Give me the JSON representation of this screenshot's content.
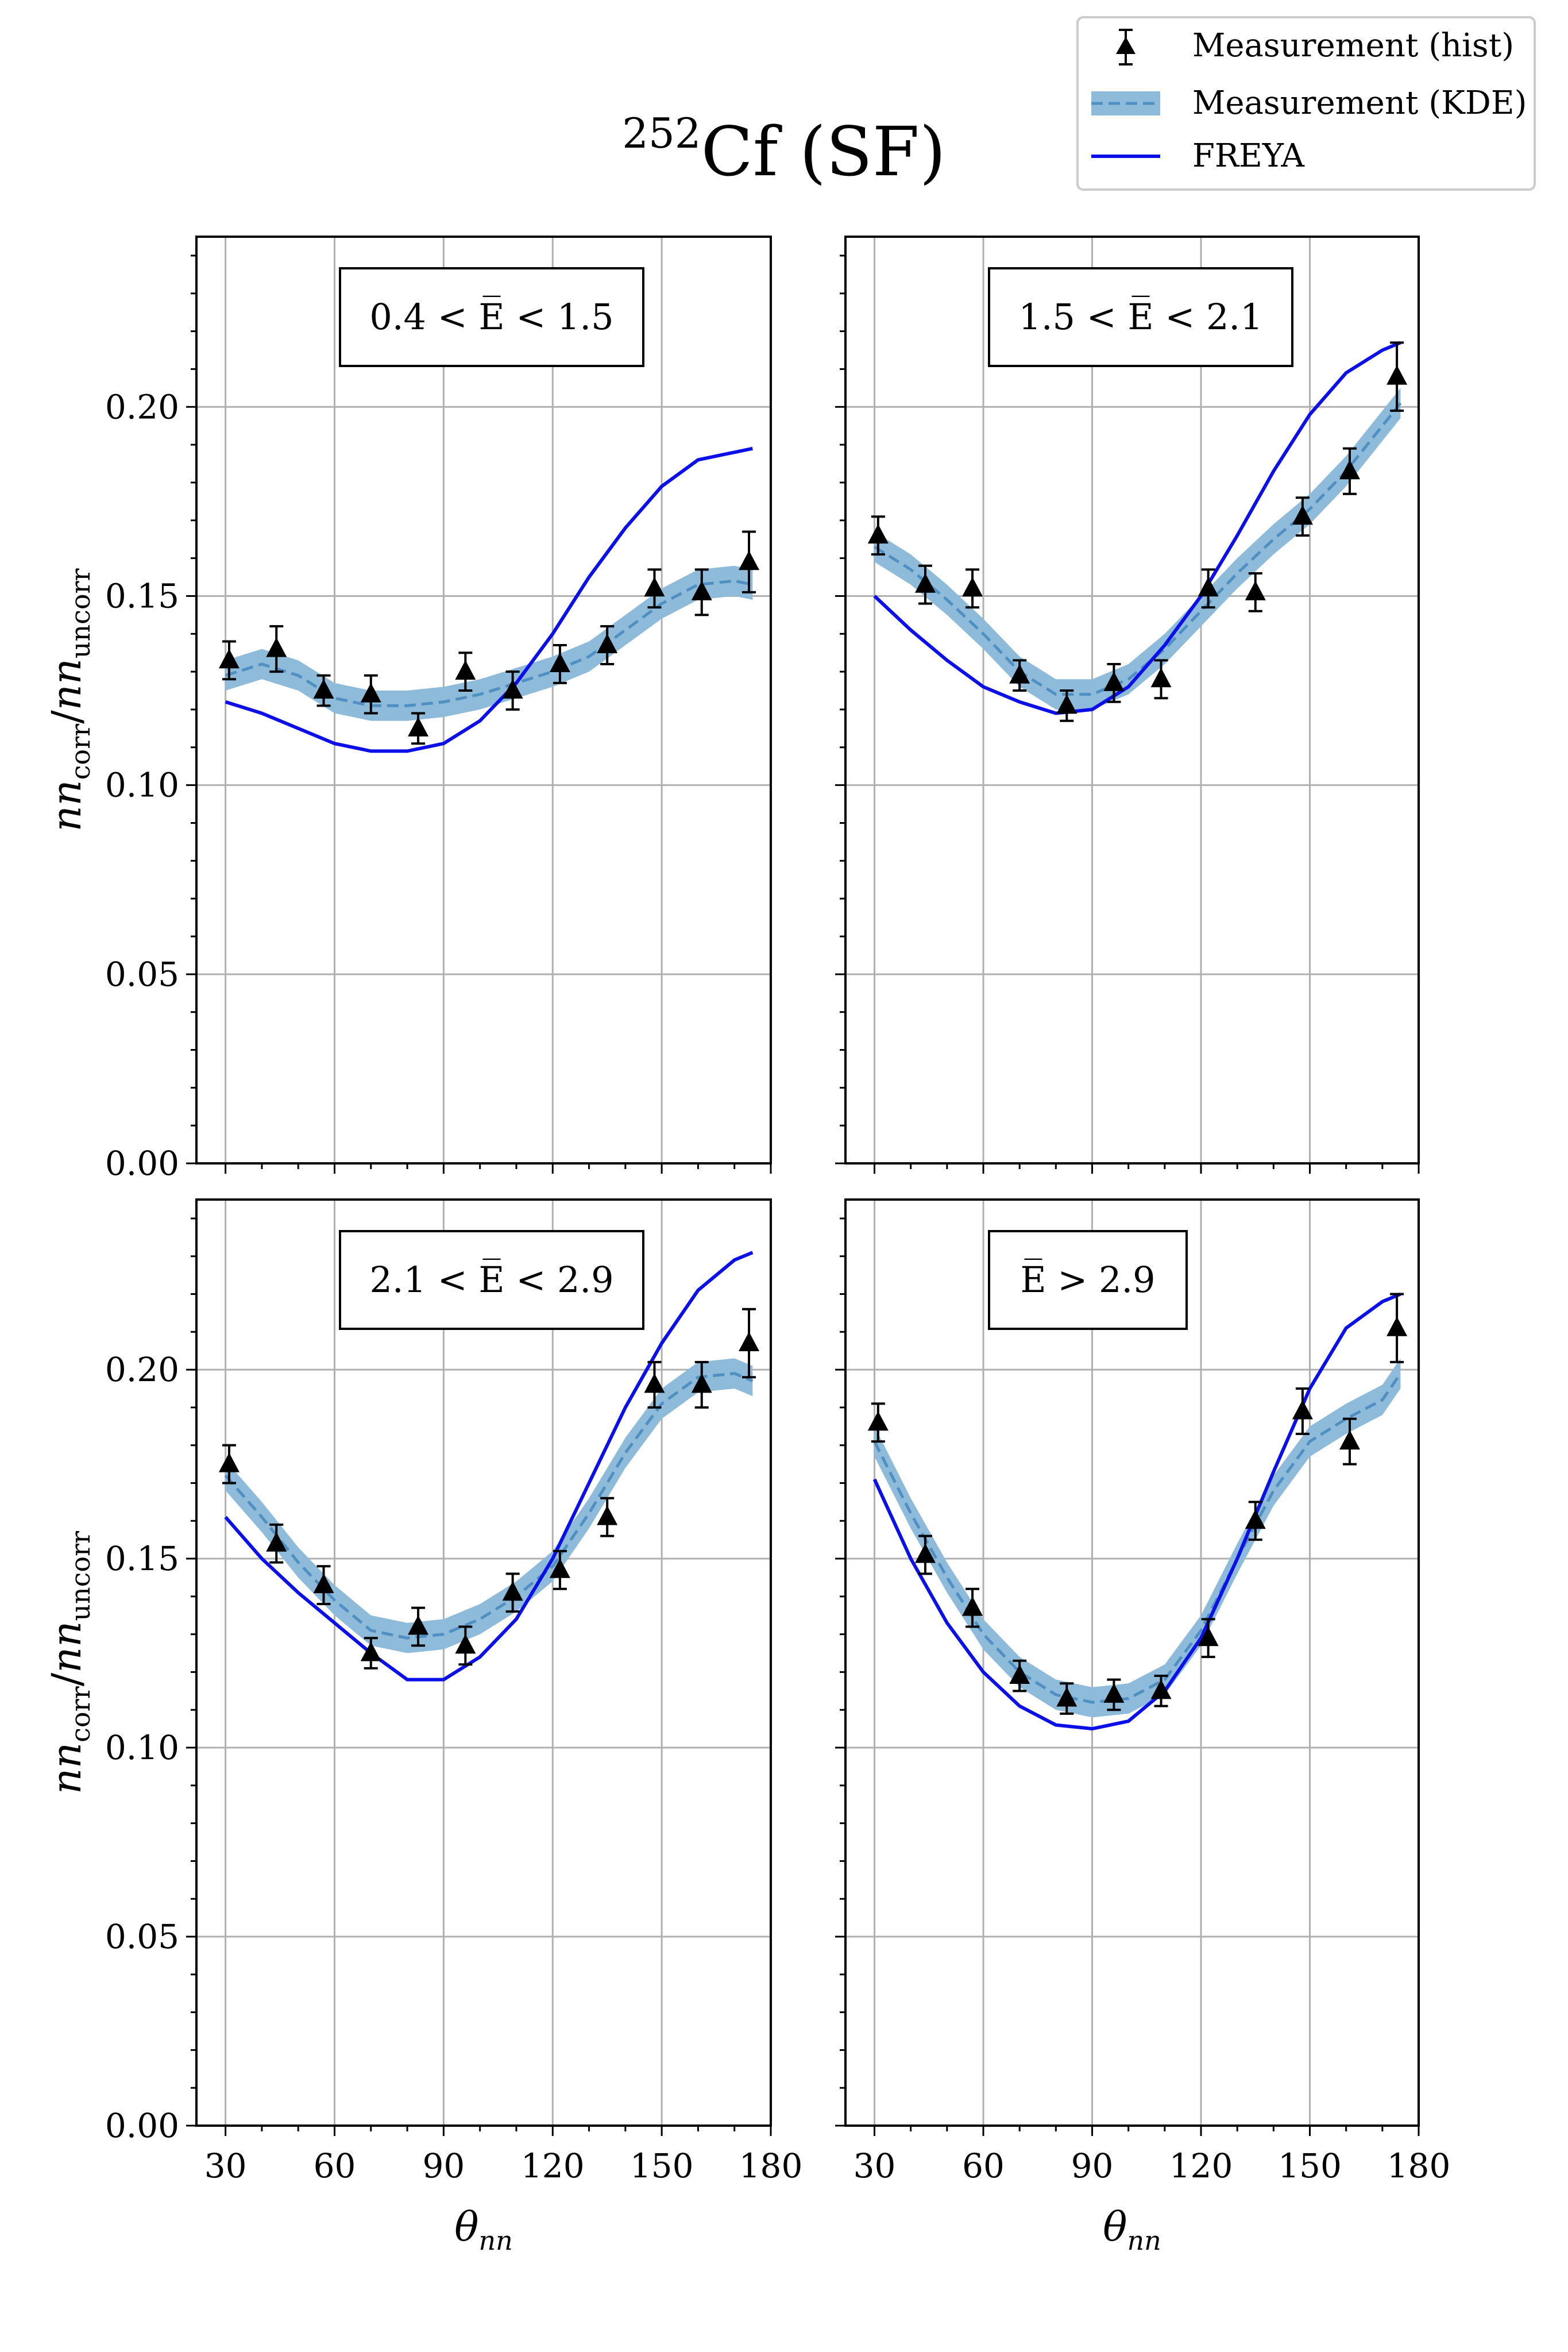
{
  "figure": {
    "title_sup": "252",
    "title_main": "Cf (SF)",
    "xlabel_main": "θ",
    "xlabel_sub": "nn",
    "ylabel_a": "nn",
    "ylabel_a_sub": "corr",
    "ylabel_sep": "/",
    "ylabel_b": "nn",
    "ylabel_b_sub": "uncorr"
  },
  "legend": {
    "position": "top-right",
    "entries": [
      {
        "label": "Measurement (hist)",
        "kind": "hist"
      },
      {
        "label": "Measurement (KDE)",
        "kind": "kde"
      },
      {
        "label": "FREYA",
        "kind": "freya"
      }
    ]
  },
  "colors": {
    "hist": "#000000",
    "kde_band": "#8fbbdb",
    "kde_line": "#4f8fc1",
    "freya": "#0b10e8",
    "grid": "#b0b0b0"
  },
  "chart_data": [
    {
      "type": "line",
      "panel_label": "0.4 < E̅ < 1.5",
      "xlim": [
        22,
        180
      ],
      "ylim": [
        0,
        0.245
      ],
      "xticks": [
        30,
        60,
        90,
        120,
        150,
        180
      ],
      "yticks": [
        0.0,
        0.05,
        0.1,
        0.15,
        0.2
      ],
      "grid": true,
      "hist": {
        "x": [
          31,
          44,
          57,
          70,
          83,
          96,
          109,
          122,
          135,
          148,
          161,
          174
        ],
        "y": [
          0.133,
          0.136,
          0.125,
          0.124,
          0.115,
          0.13,
          0.125,
          0.132,
          0.137,
          0.152,
          0.151,
          0.159
        ],
        "err": [
          0.005,
          0.006,
          0.004,
          0.005,
          0.004,
          0.005,
          0.005,
          0.005,
          0.005,
          0.005,
          0.006,
          0.008
        ]
      },
      "kde": {
        "x": [
          30,
          40,
          50,
          60,
          70,
          80,
          90,
          100,
          110,
          120,
          130,
          140,
          150,
          160,
          170,
          175
        ],
        "y": [
          0.129,
          0.132,
          0.129,
          0.123,
          0.121,
          0.121,
          0.122,
          0.124,
          0.127,
          0.13,
          0.134,
          0.141,
          0.148,
          0.153,
          0.154,
          0.153
        ],
        "band": 0.004
      },
      "freya": {
        "x": [
          30,
          40,
          50,
          60,
          70,
          80,
          90,
          100,
          110,
          120,
          130,
          140,
          150,
          160,
          170,
          175
        ],
        "y": [
          0.122,
          0.119,
          0.115,
          0.111,
          0.109,
          0.109,
          0.111,
          0.117,
          0.127,
          0.14,
          0.155,
          0.168,
          0.179,
          0.186,
          0.188,
          0.189
        ]
      }
    },
    {
      "type": "line",
      "panel_label": "1.5 < E̅ < 2.1",
      "xlim": [
        22,
        180
      ],
      "ylim": [
        0,
        0.245
      ],
      "xticks": [
        30,
        60,
        90,
        120,
        150,
        180
      ],
      "yticks": [
        0.0,
        0.05,
        0.1,
        0.15,
        0.2
      ],
      "grid": true,
      "hist": {
        "x": [
          31,
          44,
          57,
          70,
          83,
          96,
          109,
          122,
          135,
          148,
          161,
          174
        ],
        "y": [
          0.166,
          0.153,
          0.152,
          0.129,
          0.121,
          0.127,
          0.128,
          0.152,
          0.151,
          0.171,
          0.183,
          0.208
        ],
        "err": [
          0.005,
          0.005,
          0.005,
          0.004,
          0.004,
          0.005,
          0.005,
          0.005,
          0.005,
          0.005,
          0.006,
          0.009
        ]
      },
      "kde": {
        "x": [
          30,
          40,
          50,
          60,
          70,
          80,
          90,
          100,
          110,
          120,
          130,
          140,
          150,
          160,
          170,
          175
        ],
        "y": [
          0.163,
          0.157,
          0.149,
          0.14,
          0.13,
          0.124,
          0.124,
          0.128,
          0.136,
          0.146,
          0.156,
          0.165,
          0.173,
          0.183,
          0.195,
          0.201
        ],
        "band": 0.004
      },
      "freya": {
        "x": [
          30,
          40,
          50,
          60,
          70,
          80,
          90,
          100,
          110,
          120,
          130,
          140,
          150,
          160,
          170,
          175
        ],
        "y": [
          0.15,
          0.141,
          0.133,
          0.126,
          0.122,
          0.119,
          0.12,
          0.126,
          0.137,
          0.15,
          0.166,
          0.183,
          0.198,
          0.209,
          0.215,
          0.217
        ]
      }
    },
    {
      "type": "line",
      "panel_label": "2.1 < E̅ < 2.9",
      "xlim": [
        22,
        180
      ],
      "ylim": [
        0,
        0.245
      ],
      "xticks": [
        30,
        60,
        90,
        120,
        150,
        180
      ],
      "yticks": [
        0.0,
        0.05,
        0.1,
        0.15,
        0.2
      ],
      "grid": true,
      "hist": {
        "x": [
          31,
          44,
          57,
          70,
          83,
          96,
          109,
          122,
          135,
          148,
          161,
          174
        ],
        "y": [
          0.175,
          0.154,
          0.143,
          0.125,
          0.132,
          0.127,
          0.141,
          0.147,
          0.161,
          0.196,
          0.196,
          0.207
        ],
        "err": [
          0.005,
          0.005,
          0.005,
          0.004,
          0.005,
          0.005,
          0.005,
          0.005,
          0.005,
          0.006,
          0.006,
          0.009
        ]
      },
      "kde": {
        "x": [
          30,
          40,
          50,
          60,
          70,
          80,
          90,
          100,
          110,
          120,
          130,
          140,
          150,
          160,
          170,
          175
        ],
        "y": [
          0.172,
          0.161,
          0.149,
          0.139,
          0.131,
          0.129,
          0.13,
          0.134,
          0.14,
          0.148,
          0.162,
          0.178,
          0.191,
          0.198,
          0.199,
          0.197
        ],
        "band": 0.004
      },
      "freya": {
        "x": [
          30,
          40,
          50,
          60,
          70,
          80,
          90,
          100,
          110,
          120,
          130,
          140,
          150,
          160,
          170,
          175
        ],
        "y": [
          0.161,
          0.15,
          0.141,
          0.133,
          0.125,
          0.118,
          0.118,
          0.124,
          0.134,
          0.15,
          0.17,
          0.19,
          0.207,
          0.221,
          0.229,
          0.231
        ]
      }
    },
    {
      "type": "line",
      "panel_label": "E̅ > 2.9",
      "xlim": [
        22,
        180
      ],
      "ylim": [
        0,
        0.245
      ],
      "xticks": [
        30,
        60,
        90,
        120,
        150,
        180
      ],
      "yticks": [
        0.0,
        0.05,
        0.1,
        0.15,
        0.2
      ],
      "grid": true,
      "hist": {
        "x": [
          31,
          44,
          57,
          70,
          83,
          96,
          109,
          122,
          135,
          148,
          161,
          174
        ],
        "y": [
          0.186,
          0.151,
          0.137,
          0.119,
          0.113,
          0.114,
          0.115,
          0.129,
          0.16,
          0.189,
          0.181,
          0.211
        ],
        "err": [
          0.005,
          0.005,
          0.005,
          0.004,
          0.004,
          0.004,
          0.004,
          0.005,
          0.005,
          0.006,
          0.006,
          0.009
        ]
      },
      "kde": {
        "x": [
          30,
          40,
          50,
          60,
          70,
          80,
          90,
          100,
          110,
          120,
          130,
          140,
          150,
          160,
          170,
          175
        ],
        "y": [
          0.181,
          0.162,
          0.145,
          0.13,
          0.12,
          0.114,
          0.112,
          0.113,
          0.118,
          0.131,
          0.15,
          0.168,
          0.181,
          0.187,
          0.192,
          0.199
        ],
        "band": 0.004
      },
      "freya": {
        "x": [
          30,
          40,
          50,
          60,
          70,
          80,
          90,
          100,
          110,
          120,
          130,
          140,
          150,
          160,
          170,
          175
        ],
        "y": [
          0.171,
          0.15,
          0.133,
          0.12,
          0.111,
          0.106,
          0.105,
          0.107,
          0.115,
          0.129,
          0.15,
          0.173,
          0.195,
          0.211,
          0.218,
          0.22
        ]
      }
    }
  ]
}
